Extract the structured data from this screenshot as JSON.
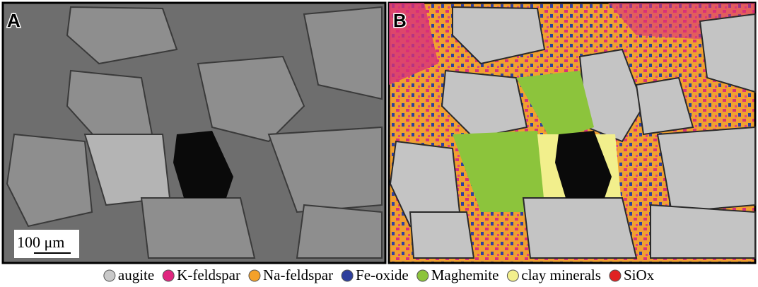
{
  "panels": [
    {
      "label": "A"
    },
    {
      "label": "B"
    }
  ],
  "scale_bar": "100 μm",
  "legend": [
    {
      "name": "augite",
      "color": "#c9c9c9"
    },
    {
      "name": "K-feldspar",
      "color": "#e0267f"
    },
    {
      "name": "Na-feldspar",
      "color": "#f4a12a"
    },
    {
      "name": "Fe-oxide",
      "color": "#2e3f9c"
    },
    {
      "name": "Maghemite",
      "color": "#8cc43c"
    },
    {
      "name": "clay minerals",
      "color": "#f2ef8c"
    },
    {
      "name": "SiOx",
      "color": "#e02222"
    }
  ]
}
